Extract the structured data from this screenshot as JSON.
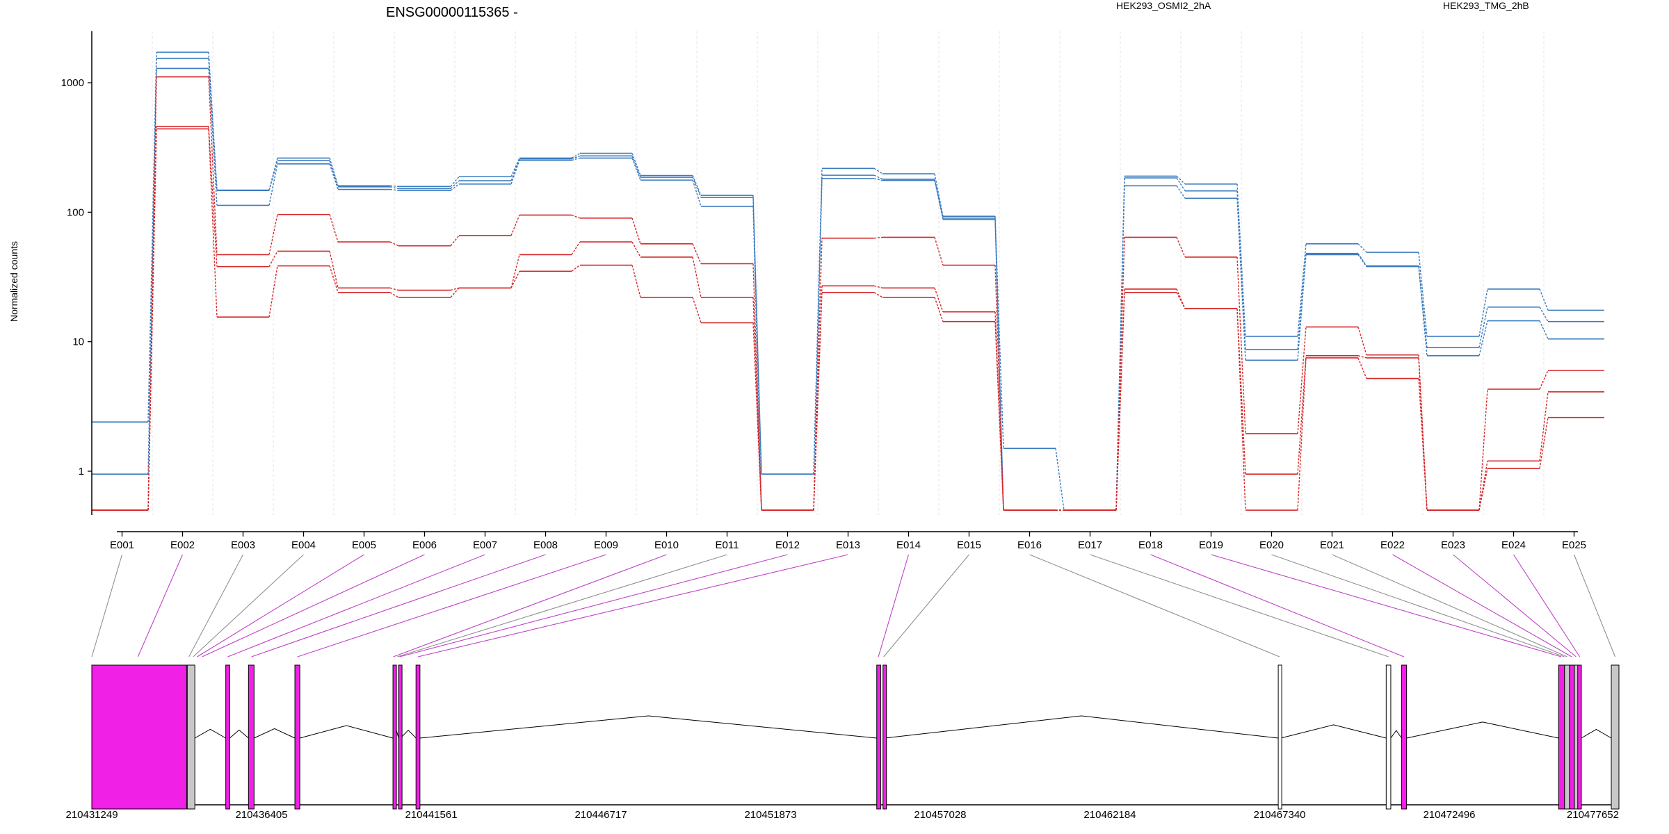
{
  "chart_data": {
    "type": "line",
    "title": "ENSG00000115365 -",
    "ylabel": "Normalized counts",
    "y_scale": "log",
    "y_ticks": [
      "1",
      "10",
      "100",
      "1000"
    ],
    "grid": "vertical",
    "legend": [
      "HEK293_OSMI2_2hA",
      "HEK293_TMG_2hB"
    ],
    "legend_placement": "top",
    "categories": [
      "E001",
      "E002",
      "E003",
      "E004",
      "E005",
      "E006",
      "E007",
      "E008",
      "E009",
      "E010",
      "E011",
      "E012",
      "E013",
      "E014",
      "E015",
      "E016",
      "E017",
      "E018",
      "E019",
      "E020",
      "E021",
      "E022",
      "E023",
      "E024",
      "E025"
    ],
    "colors": {
      "HEK293_OSMI2_2hA": "#d62728",
      "HEK293_TMG_2hB": "#3a7bbf"
    },
    "series": [
      {
        "name": "HEK293_TMG_2hB",
        "values": [
          2.4,
          1720,
          148,
          262,
          160,
          158,
          188,
          262,
          285,
          192,
          135,
          0.95,
          218,
          198,
          93,
          1.5,
          0.5,
          190,
          165,
          11,
          57,
          49,
          11,
          25.5,
          17.5
        ]
      },
      {
        "name": "HEK293_TMG_2hB",
        "values": [
          0.95,
          1540,
          147,
          250,
          157,
          152,
          175,
          258,
          272,
          186,
          130,
          0.95,
          193,
          180,
          90,
          0.5,
          0.5,
          184,
          146,
          8.7,
          48,
          38.5,
          9,
          18.5,
          14.3
        ]
      },
      {
        "name": "HEK293_TMG_2hB",
        "values": [
          0.5,
          1290,
          113,
          236,
          150,
          147,
          165,
          252,
          262,
          177,
          111,
          0.5,
          182,
          176,
          88,
          0.5,
          0.5,
          160,
          128,
          7.2,
          47,
          38,
          7.8,
          14.5,
          10.5
        ]
      },
      {
        "name": "HEK293_OSMI2_2hA",
        "values": [
          0.5,
          1110,
          47,
          96,
          59,
          55,
          66,
          95,
          90,
          57,
          40,
          0.5,
          63,
          64,
          39,
          0.5,
          0.5,
          64,
          45,
          1.95,
          13,
          7.9,
          0.5,
          4.3,
          6
        ]
      },
      {
        "name": "HEK293_OSMI2_2hA",
        "values": [
          0.5,
          460,
          38,
          50,
          26,
          25,
          26,
          47,
          59,
          45,
          22,
          0.5,
          27,
          26,
          17,
          0.5,
          0.5,
          25.5,
          18,
          0.95,
          7.8,
          7.5,
          0.5,
          1.2,
          4.1
        ]
      },
      {
        "name": "HEK293_OSMI2_2hA",
        "values": [
          0.5,
          440,
          15.5,
          38.5,
          24,
          22,
          26,
          35,
          39,
          22,
          14,
          0.5,
          24,
          22,
          14.3,
          0.5,
          0.5,
          24,
          18,
          0.5,
          7.5,
          5.2,
          0.5,
          1.05,
          2.6
        ]
      }
    ],
    "gene_model": {
      "coordinate_ticks": [
        "210431249",
        "210436405",
        "210441561",
        "210446717",
        "210451873",
        "210457028",
        "210462184",
        "210467340",
        "210472496",
        "210477652"
      ],
      "coordinate_range": [
        210431249,
        210477652
      ],
      "exons": [
        {
          "start": 210431249,
          "end": 210434130,
          "type": "differential"
        },
        {
          "start": 210434150,
          "end": 210434380,
          "type": "other"
        },
        {
          "start": 210435320,
          "end": 210435440,
          "type": "differential"
        },
        {
          "start": 210436010,
          "end": 210436180,
          "type": "differential"
        },
        {
          "start": 210437420,
          "end": 210437570,
          "type": "differential"
        },
        {
          "start": 210440400,
          "end": 210440450,
          "type": "differential"
        },
        {
          "start": 210440570,
          "end": 210440630,
          "type": "differential"
        },
        {
          "start": 210441100,
          "end": 210441220,
          "type": "differential"
        },
        {
          "start": 210455100,
          "end": 210455220,
          "type": "differential"
        },
        {
          "start": 210455290,
          "end": 210455340,
          "type": "differential"
        },
        {
          "start": 210467300,
          "end": 210467380,
          "type": "open"
        },
        {
          "start": 210470580,
          "end": 210470720,
          "type": "open"
        },
        {
          "start": 210471050,
          "end": 210471200,
          "type": "differential"
        },
        {
          "start": 210475820,
          "end": 210476000,
          "type": "differential"
        },
        {
          "start": 210476000,
          "end": 210476150,
          "type": "other"
        },
        {
          "start": 210476150,
          "end": 210476300,
          "type": "differential"
        },
        {
          "start": 210476300,
          "end": 210476400,
          "type": "other"
        },
        {
          "start": 210476400,
          "end": 210476510,
          "type": "differential"
        },
        {
          "start": 210477420,
          "end": 210477652,
          "type": "other"
        }
      ],
      "exon_links": [
        {
          "bin": "E001",
          "genomic": 210431249,
          "type": "other"
        },
        {
          "bin": "E002",
          "genomic": 210432650,
          "type": "differential"
        },
        {
          "bin": "E003",
          "genomic": 210434200,
          "type": "other"
        },
        {
          "bin": "E004",
          "genomic": 210434330,
          "type": "other"
        },
        {
          "bin": "E005",
          "genomic": 210434450,
          "type": "differential"
        },
        {
          "bin": "E006",
          "genomic": 210434600,
          "type": "differential"
        },
        {
          "bin": "E007",
          "genomic": 210435380,
          "type": "differential"
        },
        {
          "bin": "E008",
          "genomic": 210436100,
          "type": "differential"
        },
        {
          "bin": "E009",
          "genomic": 210437500,
          "type": "differential"
        },
        {
          "bin": "E010",
          "genomic": 210440410,
          "type": "differential"
        },
        {
          "bin": "E011",
          "genomic": 210440530,
          "type": "other"
        },
        {
          "bin": "E012",
          "genomic": 210440600,
          "type": "differential"
        },
        {
          "bin": "E013",
          "genomic": 210441160,
          "type": "differential"
        },
        {
          "bin": "E014",
          "genomic": 210455150,
          "type": "differential"
        },
        {
          "bin": "E015",
          "genomic": 210455310,
          "type": "other"
        },
        {
          "bin": "E016",
          "genomic": 210467340,
          "type": "other"
        },
        {
          "bin": "E017",
          "genomic": 210470650,
          "type": "other"
        },
        {
          "bin": "E018",
          "genomic": 210471120,
          "type": "differential"
        },
        {
          "bin": "E019",
          "genomic": 210475900,
          "type": "differential"
        },
        {
          "bin": "E020",
          "genomic": 210476000,
          "type": "other"
        },
        {
          "bin": "E021",
          "genomic": 210476080,
          "type": "other"
        },
        {
          "bin": "E022",
          "genomic": 210476220,
          "type": "differential"
        },
        {
          "bin": "E023",
          "genomic": 210476350,
          "type": "differential"
        },
        {
          "bin": "E024",
          "genomic": 210476460,
          "type": "differential"
        },
        {
          "bin": "E025",
          "genomic": 210477536,
          "type": "other"
        }
      ]
    }
  }
}
